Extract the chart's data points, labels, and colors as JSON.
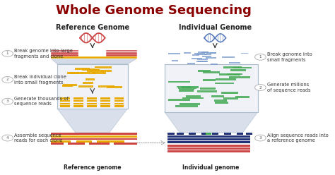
{
  "title": "Whole Genome Sequencing",
  "title_color": "#8B0000",
  "title_fontsize": 13,
  "bg_color": "#FFFFFF",
  "left_header": "Reference Genome",
  "right_header": "Individual Genome",
  "left_steps": [
    "1   Break genome into large\n     fragments and clone",
    "2   Break individual clone\n     into small fragments",
    "3   Generate thousands of\n     sequence reads",
    "4   Assemble sequence\n     reads for each clone"
  ],
  "right_steps": [
    "1   Break genome into\n     small fragments",
    "2   Generate millions\n     of sequence reads",
    "3   Align sequence reads into\n     a reference genome"
  ],
  "left_footer": "Reference genome",
  "right_footer": "Individual genome",
  "dna_red_color": "#CC4444",
  "dna_blue_color": "#5577BB",
  "fragment_red": "#CC4444",
  "fragment_orange": "#E8AA00",
  "fragment_green": "#44AA55",
  "fragment_navy": "#223377",
  "fragment_blue_small": "#7799CC",
  "box_fill": "#F0F2F8",
  "box_edge": "#AABBCC",
  "funnel_fill": "#CDD5E5",
  "step_text_size": 4.8,
  "header_text_size": 7.0,
  "circle_color": "#AAAAAA"
}
